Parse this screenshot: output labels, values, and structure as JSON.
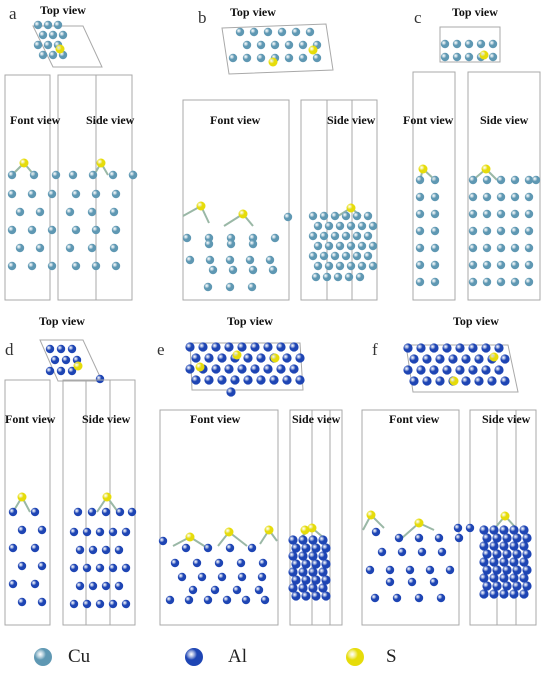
{
  "view_labels": {
    "top": "Top view",
    "front": "Font view",
    "side": "Side view"
  },
  "panels": [
    {
      "letter": "a",
      "element": "Cu"
    },
    {
      "letter": "b",
      "element": "Cu"
    },
    {
      "letter": "c",
      "element": "Cu"
    },
    {
      "letter": "d",
      "element": "Al"
    },
    {
      "letter": "e",
      "element": "Al"
    },
    {
      "letter": "f",
      "element": "Al"
    }
  ],
  "legend": [
    {
      "symbol": "Cu",
      "color": "#5f98b3"
    },
    {
      "symbol": "Al",
      "color": "#1e45b4"
    },
    {
      "symbol": "S",
      "color": "#e6dc0a"
    }
  ],
  "colors": {
    "cu": "#5f98b3",
    "al": "#1e45b4",
    "s": "#e6dc0a",
    "bond": "#9ab8a6",
    "cell_line": "#a9a9a9"
  }
}
